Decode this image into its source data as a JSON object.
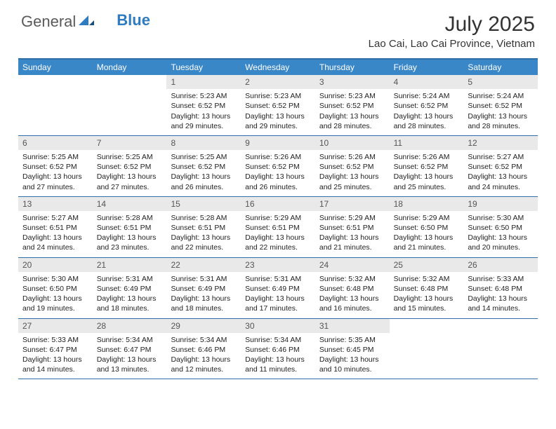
{
  "logo": {
    "general": "General",
    "blue": "Blue"
  },
  "title": "July 2025",
  "location": "Lao Cai, Lao Cai Province, Vietnam",
  "colors": {
    "header_bg": "#3a87c8",
    "border": "#2f6fa8",
    "day_band": "#e9e9e9",
    "text": "#222222",
    "logo_gray": "#5a5a5a",
    "logo_blue": "#2f7bbf"
  },
  "weekdays": [
    "Sunday",
    "Monday",
    "Tuesday",
    "Wednesday",
    "Thursday",
    "Friday",
    "Saturday"
  ],
  "weeks": [
    [
      {
        "day": "",
        "sunrise": "",
        "sunset": "",
        "daylight": ""
      },
      {
        "day": "",
        "sunrise": "",
        "sunset": "",
        "daylight": ""
      },
      {
        "day": "1",
        "sunrise": "Sunrise: 5:23 AM",
        "sunset": "Sunset: 6:52 PM",
        "daylight": "Daylight: 13 hours and 29 minutes."
      },
      {
        "day": "2",
        "sunrise": "Sunrise: 5:23 AM",
        "sunset": "Sunset: 6:52 PM",
        "daylight": "Daylight: 13 hours and 29 minutes."
      },
      {
        "day": "3",
        "sunrise": "Sunrise: 5:23 AM",
        "sunset": "Sunset: 6:52 PM",
        "daylight": "Daylight: 13 hours and 28 minutes."
      },
      {
        "day": "4",
        "sunrise": "Sunrise: 5:24 AM",
        "sunset": "Sunset: 6:52 PM",
        "daylight": "Daylight: 13 hours and 28 minutes."
      },
      {
        "day": "5",
        "sunrise": "Sunrise: 5:24 AM",
        "sunset": "Sunset: 6:52 PM",
        "daylight": "Daylight: 13 hours and 28 minutes."
      }
    ],
    [
      {
        "day": "6",
        "sunrise": "Sunrise: 5:25 AM",
        "sunset": "Sunset: 6:52 PM",
        "daylight": "Daylight: 13 hours and 27 minutes."
      },
      {
        "day": "7",
        "sunrise": "Sunrise: 5:25 AM",
        "sunset": "Sunset: 6:52 PM",
        "daylight": "Daylight: 13 hours and 27 minutes."
      },
      {
        "day": "8",
        "sunrise": "Sunrise: 5:25 AM",
        "sunset": "Sunset: 6:52 PM",
        "daylight": "Daylight: 13 hours and 26 minutes."
      },
      {
        "day": "9",
        "sunrise": "Sunrise: 5:26 AM",
        "sunset": "Sunset: 6:52 PM",
        "daylight": "Daylight: 13 hours and 26 minutes."
      },
      {
        "day": "10",
        "sunrise": "Sunrise: 5:26 AM",
        "sunset": "Sunset: 6:52 PM",
        "daylight": "Daylight: 13 hours and 25 minutes."
      },
      {
        "day": "11",
        "sunrise": "Sunrise: 5:26 AM",
        "sunset": "Sunset: 6:52 PM",
        "daylight": "Daylight: 13 hours and 25 minutes."
      },
      {
        "day": "12",
        "sunrise": "Sunrise: 5:27 AM",
        "sunset": "Sunset: 6:52 PM",
        "daylight": "Daylight: 13 hours and 24 minutes."
      }
    ],
    [
      {
        "day": "13",
        "sunrise": "Sunrise: 5:27 AM",
        "sunset": "Sunset: 6:51 PM",
        "daylight": "Daylight: 13 hours and 24 minutes."
      },
      {
        "day": "14",
        "sunrise": "Sunrise: 5:28 AM",
        "sunset": "Sunset: 6:51 PM",
        "daylight": "Daylight: 13 hours and 23 minutes."
      },
      {
        "day": "15",
        "sunrise": "Sunrise: 5:28 AM",
        "sunset": "Sunset: 6:51 PM",
        "daylight": "Daylight: 13 hours and 22 minutes."
      },
      {
        "day": "16",
        "sunrise": "Sunrise: 5:29 AM",
        "sunset": "Sunset: 6:51 PM",
        "daylight": "Daylight: 13 hours and 22 minutes."
      },
      {
        "day": "17",
        "sunrise": "Sunrise: 5:29 AM",
        "sunset": "Sunset: 6:51 PM",
        "daylight": "Daylight: 13 hours and 21 minutes."
      },
      {
        "day": "18",
        "sunrise": "Sunrise: 5:29 AM",
        "sunset": "Sunset: 6:50 PM",
        "daylight": "Daylight: 13 hours and 21 minutes."
      },
      {
        "day": "19",
        "sunrise": "Sunrise: 5:30 AM",
        "sunset": "Sunset: 6:50 PM",
        "daylight": "Daylight: 13 hours and 20 minutes."
      }
    ],
    [
      {
        "day": "20",
        "sunrise": "Sunrise: 5:30 AM",
        "sunset": "Sunset: 6:50 PM",
        "daylight": "Daylight: 13 hours and 19 minutes."
      },
      {
        "day": "21",
        "sunrise": "Sunrise: 5:31 AM",
        "sunset": "Sunset: 6:49 PM",
        "daylight": "Daylight: 13 hours and 18 minutes."
      },
      {
        "day": "22",
        "sunrise": "Sunrise: 5:31 AM",
        "sunset": "Sunset: 6:49 PM",
        "daylight": "Daylight: 13 hours and 18 minutes."
      },
      {
        "day": "23",
        "sunrise": "Sunrise: 5:31 AM",
        "sunset": "Sunset: 6:49 PM",
        "daylight": "Daylight: 13 hours and 17 minutes."
      },
      {
        "day": "24",
        "sunrise": "Sunrise: 5:32 AM",
        "sunset": "Sunset: 6:48 PM",
        "daylight": "Daylight: 13 hours and 16 minutes."
      },
      {
        "day": "25",
        "sunrise": "Sunrise: 5:32 AM",
        "sunset": "Sunset: 6:48 PM",
        "daylight": "Daylight: 13 hours and 15 minutes."
      },
      {
        "day": "26",
        "sunrise": "Sunrise: 5:33 AM",
        "sunset": "Sunset: 6:48 PM",
        "daylight": "Daylight: 13 hours and 14 minutes."
      }
    ],
    [
      {
        "day": "27",
        "sunrise": "Sunrise: 5:33 AM",
        "sunset": "Sunset: 6:47 PM",
        "daylight": "Daylight: 13 hours and 14 minutes."
      },
      {
        "day": "28",
        "sunrise": "Sunrise: 5:34 AM",
        "sunset": "Sunset: 6:47 PM",
        "daylight": "Daylight: 13 hours and 13 minutes."
      },
      {
        "day": "29",
        "sunrise": "Sunrise: 5:34 AM",
        "sunset": "Sunset: 6:46 PM",
        "daylight": "Daylight: 13 hours and 12 minutes."
      },
      {
        "day": "30",
        "sunrise": "Sunrise: 5:34 AM",
        "sunset": "Sunset: 6:46 PM",
        "daylight": "Daylight: 13 hours and 11 minutes."
      },
      {
        "day": "31",
        "sunrise": "Sunrise: 5:35 AM",
        "sunset": "Sunset: 6:45 PM",
        "daylight": "Daylight: 13 hours and 10 minutes."
      },
      {
        "day": "",
        "sunrise": "",
        "sunset": "",
        "daylight": ""
      },
      {
        "day": "",
        "sunrise": "",
        "sunset": "",
        "daylight": ""
      }
    ]
  ]
}
